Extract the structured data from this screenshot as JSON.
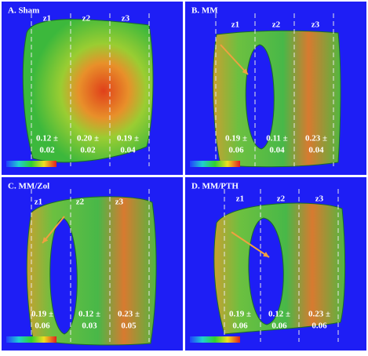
{
  "panels": [
    {
      "title": "A. Sham",
      "zones": [
        "z1",
        "z2",
        "z3"
      ],
      "values": [
        {
          "mean": "0.12 ±",
          "sd": "0.02"
        },
        {
          "mean": "0.20 ±",
          "sd": "0.02"
        },
        {
          "mean": "0.19 ±",
          "sd": "0.04"
        }
      ]
    },
    {
      "title": "B. MM",
      "zones": [
        "z1",
        "z2",
        "z3"
      ],
      "values": [
        {
          "mean": "0.19 ±",
          "sd": "0.06"
        },
        {
          "mean": "0.11 ±",
          "sd": "0.04"
        },
        {
          "mean": "0.23 ±",
          "sd": "0.04"
        }
      ]
    },
    {
      "title": "C. MM/Zol",
      "zones": [
        "z1",
        "z2",
        "z3"
      ],
      "values": [
        {
          "mean": "0.19 ±",
          "sd": "0.06"
        },
        {
          "mean": "0.12 ±",
          "sd": "0.03"
        },
        {
          "mean": "0.23 ±",
          "sd": "0.05"
        }
      ]
    },
    {
      "title": "D. MM/PTH",
      "zones": [
        "z1",
        "z2",
        "z3"
      ],
      "values": [
        {
          "mean": "0.19 ±",
          "sd": "0.06"
        },
        {
          "mean": "0.12 ±",
          "sd": "0.06"
        },
        {
          "mean": "0.23 ±",
          "sd": "0.06"
        }
      ]
    }
  ]
}
